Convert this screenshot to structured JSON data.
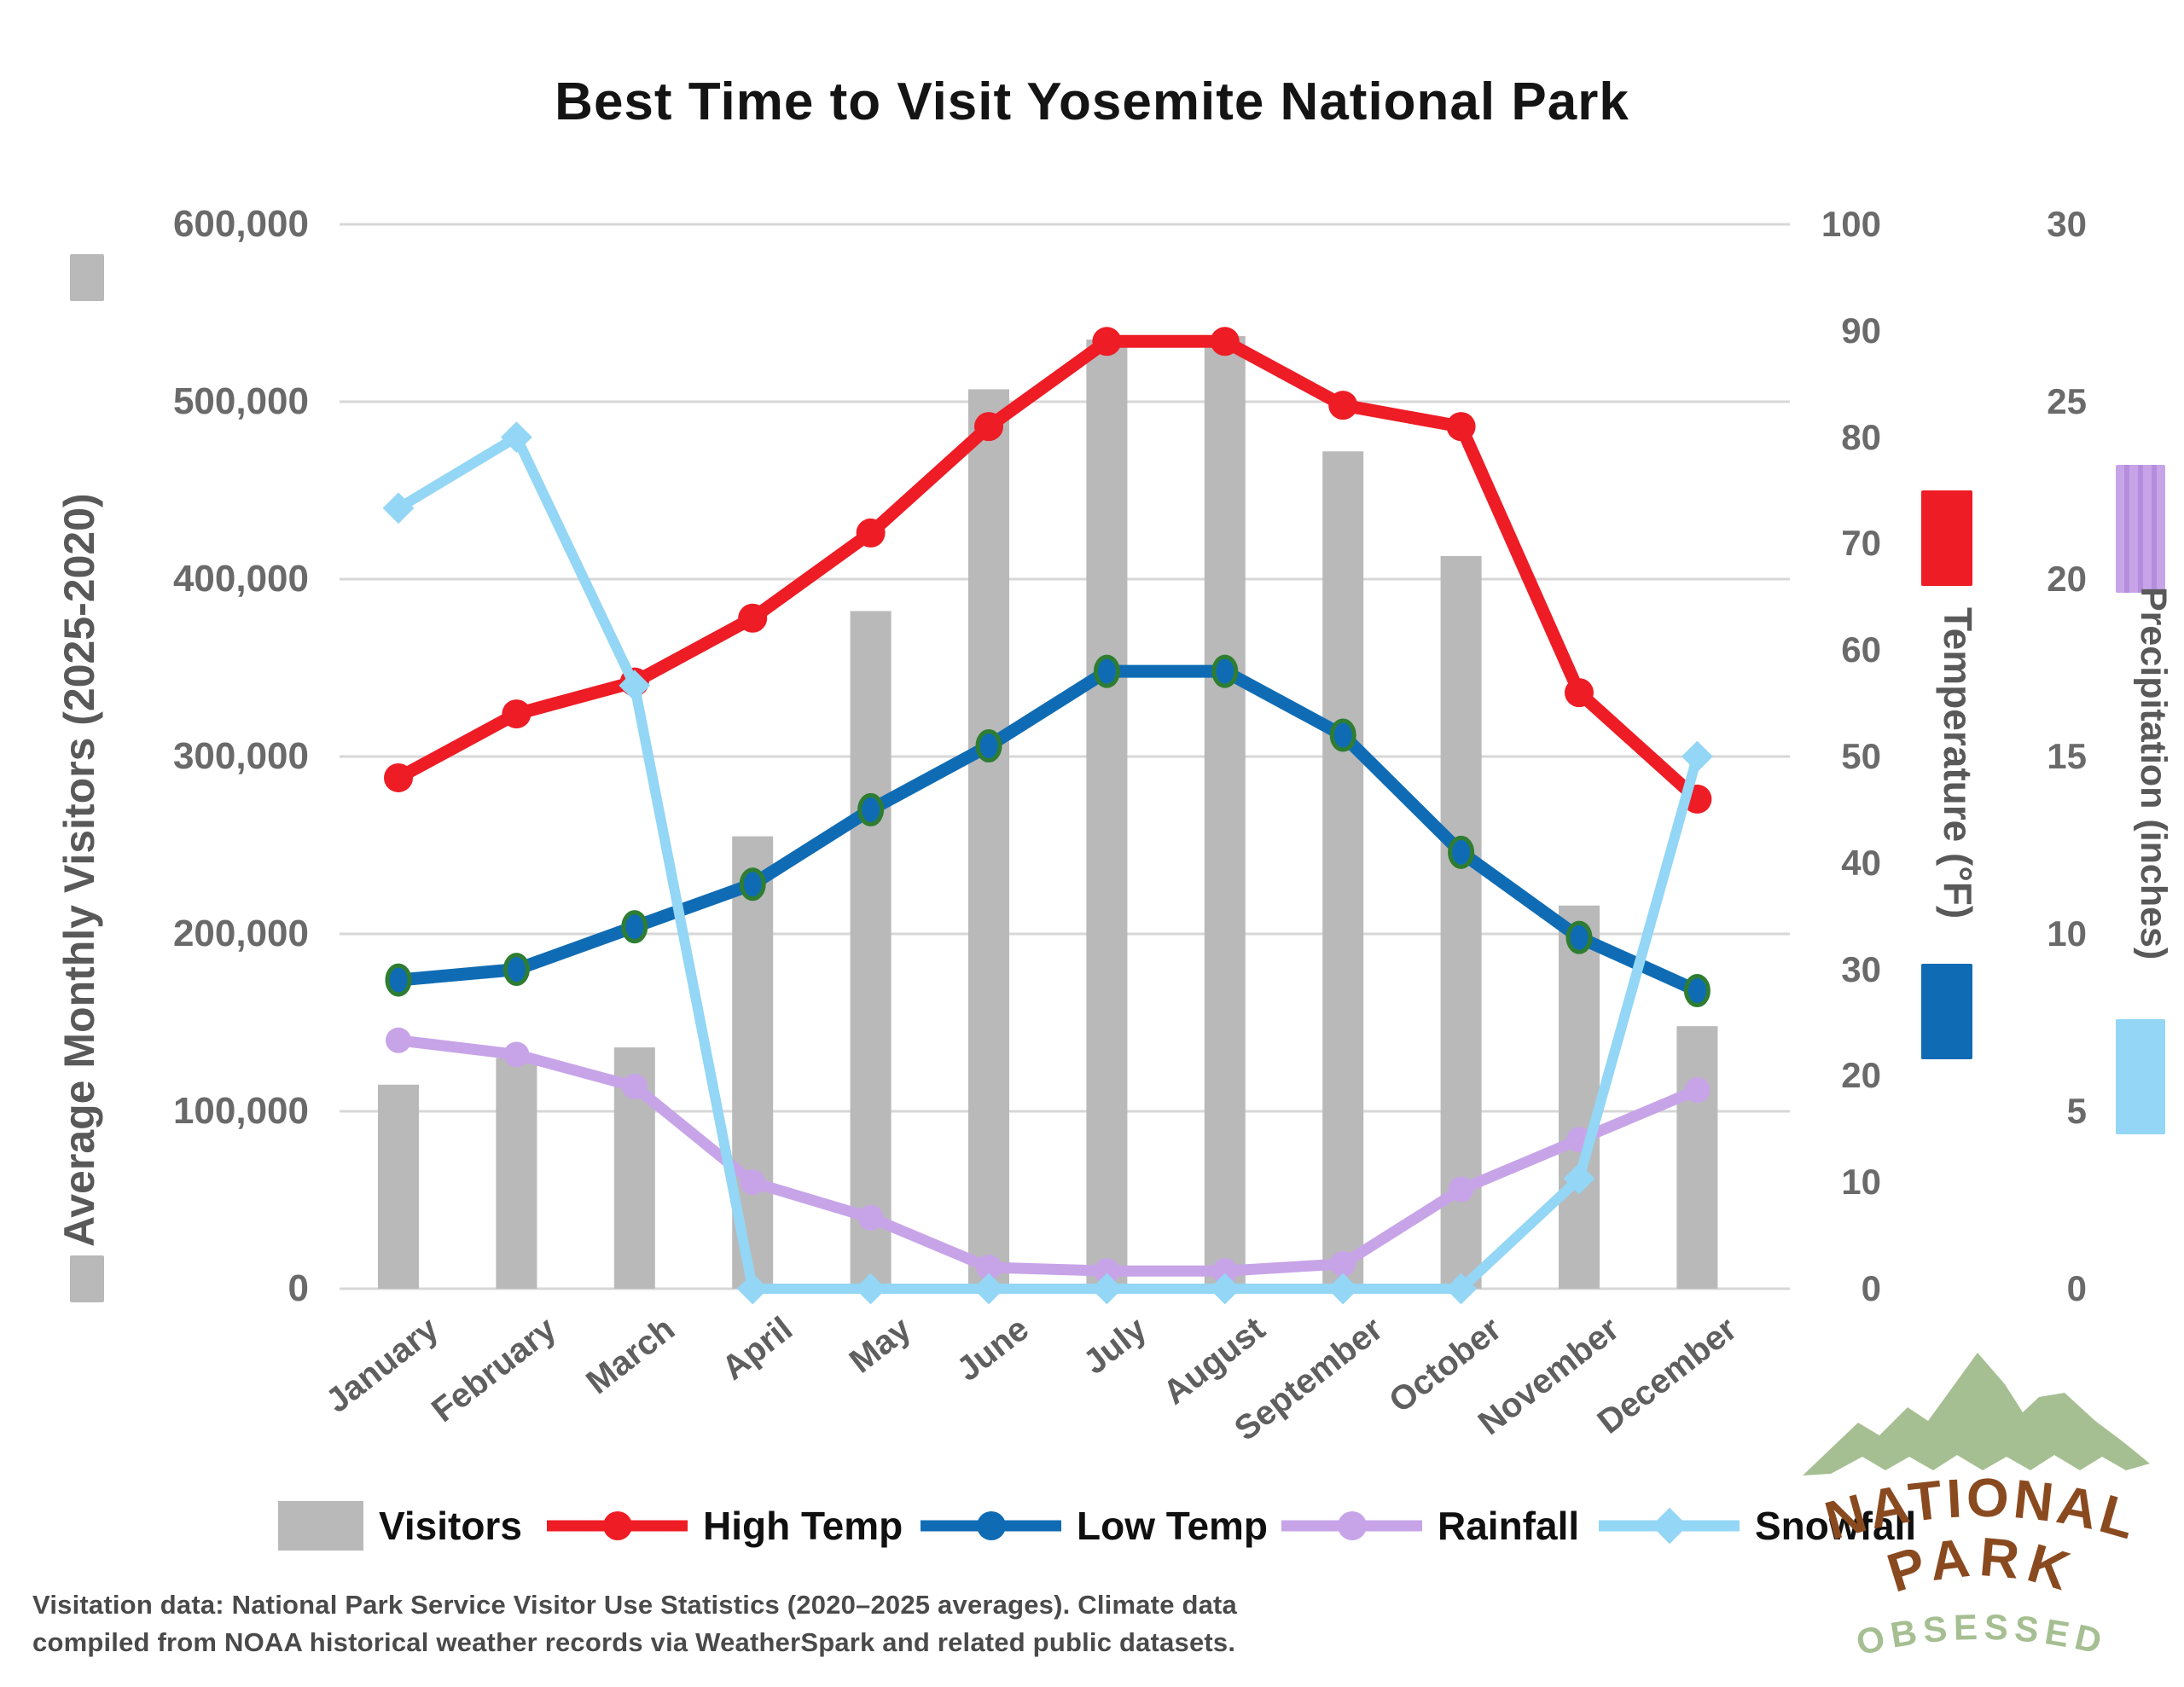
{
  "title": "Best Time to Visit Yosemite National Park",
  "axes": {
    "visitors": {
      "title": "Average Monthly Visitors (2025-2020)",
      "tick_labels": [
        "600,000",
        "500,000",
        "400,000",
        "300,000",
        "200,000",
        "100,000",
        "0"
      ]
    },
    "temperature": {
      "title": "Temperature (°F)",
      "tick_labels": [
        "100",
        "90",
        "80",
        "70",
        "60",
        "50",
        "40",
        "30",
        "20",
        "10",
        "0"
      ]
    },
    "precipitation": {
      "title": "Precipitation (inches)",
      "tick_labels": [
        "30",
        "25",
        "20",
        "15",
        "10",
        "5",
        "0"
      ]
    }
  },
  "legend": [
    {
      "label": "Visitors",
      "marker": "bar",
      "color_key": "bar_gray"
    },
    {
      "label": "High Temp",
      "marker": "circle",
      "color_key": "high_red"
    },
    {
      "label": "Low Temp",
      "marker": "circle",
      "color_key": "low_blue"
    },
    {
      "label": "Rainfall",
      "marker": "circle",
      "color_key": "rain_purple"
    },
    {
      "label": "Snowfall",
      "marker": "diamond",
      "color_key": "snow_cyan"
    }
  ],
  "source_lines": [
    "Visitation data: National Park Service Visitor Use Statistics (2020–2025 averages). Climate data",
    "compiled from NOAA historical weather records via WeatherSpark and related public datasets."
  ],
  "logo": {
    "line1": "NATIONAL",
    "line2": "PARK",
    "line3": "OBSESSED"
  },
  "colors": {
    "bar_gray": "#b9b9b9",
    "high_red": "#ee1c25",
    "low_blue": "#0f6cb4",
    "low_blue_outline": "#2e7d32",
    "rain_purple": "#c7a4e8",
    "snow_cyan": "#93d6f5",
    "gridline": "#d7d7d7",
    "tick_text": "#6a6a6a",
    "logo_green": "#a6bf92",
    "logo_brown": "#8a4a1f"
  },
  "chart_data": {
    "type": "bar",
    "subtype": "combo-bar-and-lines",
    "title": "Best Time to Visit Yosemite National Park",
    "categories": [
      "January",
      "February",
      "March",
      "April",
      "May",
      "June",
      "July",
      "August",
      "September",
      "October",
      "November",
      "December"
    ],
    "series": [
      {
        "name": "Visitors",
        "type": "bar",
        "axis": "visitors",
        "values": [
          115000,
          130000,
          136000,
          255000,
          382000,
          507000,
          535000,
          537000,
          472000,
          413000,
          216000,
          148000
        ]
      },
      {
        "name": "High Temp",
        "type": "line",
        "axis": "temperature_f",
        "marker": "circle",
        "values": [
          48,
          54,
          57,
          63,
          71,
          81,
          89,
          89,
          83,
          81,
          56,
          46
        ]
      },
      {
        "name": "Low Temp",
        "type": "line",
        "axis": "temperature_f",
        "marker": "circle-outlined",
        "values": [
          29,
          30,
          34,
          38,
          45,
          51,
          58,
          58,
          52,
          41,
          33,
          28
        ]
      },
      {
        "name": "Rainfall",
        "type": "line",
        "axis": "precipitation_in",
        "marker": "circle",
        "values": [
          7.0,
          6.6,
          5.7,
          3.0,
          2.0,
          0.6,
          0.5,
          0.5,
          0.7,
          2.8,
          4.2,
          5.6
        ]
      },
      {
        "name": "Snowfall",
        "type": "line",
        "axis": "precipitation_in",
        "marker": "diamond",
        "values": [
          22,
          24,
          17,
          0,
          0,
          0,
          0,
          0,
          0,
          0,
          3.1,
          15
        ]
      }
    ],
    "axis_ranges": {
      "visitors": [
        0,
        600000
      ],
      "temperature_f": [
        0,
        100
      ],
      "precipitation_in": [
        0,
        30
      ]
    },
    "grid": true,
    "legend_position": "bottom"
  }
}
